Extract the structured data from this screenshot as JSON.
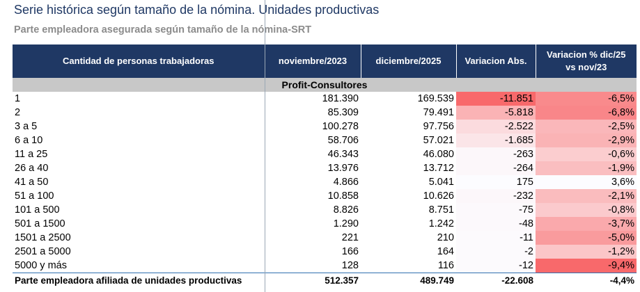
{
  "title": "Serie histórica según tamaño de la nómina. Unidades productivas",
  "subtitle": "Parte empleadora asegurada según tamaño de la nómina-SRT",
  "headers": {
    "category": "Cantidad de personas trabajadoras",
    "nov2023": "noviembre/2023",
    "dic2025": "diciembre/2025",
    "var_abs": "Variacion Abs.",
    "var_pct_line1": "Variacion % dic/25",
    "var_pct_line2": "vs nov/23"
  },
  "group_label": "Profit-Consultores",
  "rows": [
    {
      "label": "1",
      "nov2023": "181.390",
      "dic2025": "169.539",
      "var_abs": "-11.851",
      "var_pct": "-6,5%"
    },
    {
      "label": "2",
      "nov2023": "85.309",
      "dic2025": "79.491",
      "var_abs": "-5.818",
      "var_pct": "-6,8%"
    },
    {
      "label": "3 a 5",
      "nov2023": "100.278",
      "dic2025": "97.756",
      "var_abs": "-2.522",
      "var_pct": "-2,5%"
    },
    {
      "label": " 6 a 10",
      "nov2023": "58.706",
      "dic2025": "57.021",
      "var_abs": "-1.685",
      "var_pct": "-2,9%"
    },
    {
      "label": "11 a 25",
      "nov2023": "46.343",
      "dic2025": "46.080",
      "var_abs": "-263",
      "var_pct": "-0,6%"
    },
    {
      "label": "26 a 40",
      "nov2023": "13.976",
      "dic2025": "13.712",
      "var_abs": "-264",
      "var_pct": "-1,9%"
    },
    {
      "label": "41 a 50",
      "nov2023": "4.866",
      "dic2025": "5.041",
      "var_abs": "175",
      "var_pct": "3,6%"
    },
    {
      "label": "51 a 100",
      "nov2023": "10.858",
      "dic2025": "10.626",
      "var_abs": "-232",
      "var_pct": "-2,1%"
    },
    {
      "label": "101 a 500",
      "nov2023": "8.826",
      "dic2025": "8.751",
      "var_abs": "-75",
      "var_pct": "-0,8%"
    },
    {
      "label": "501 a 1500",
      "nov2023": "1.290",
      "dic2025": "1.242",
      "var_abs": "-48",
      "var_pct": "-3,7%"
    },
    {
      "label": "1501 a 2500",
      "nov2023": "221",
      "dic2025": "210",
      "var_abs": "-11",
      "var_pct": "-5,0%"
    },
    {
      "label": "2501 a 5000",
      "nov2023": "166",
      "dic2025": "164",
      "var_abs": "-2",
      "var_pct": "-1,2%"
    },
    {
      "label": "5000 y más",
      "nov2023": "128",
      "dic2025": "116",
      "var_abs": "-12",
      "var_pct": "-9,4%"
    }
  ],
  "total": {
    "label": "Parte empleadora afiliada de unidades productivas",
    "nov2023": "512.357",
    "dic2025": "489.749",
    "var_abs": "-22.608",
    "var_pct": "-4,4%"
  },
  "heat_colors": {
    "neg_max": "#f8696b",
    "neutral": "#fcfcff"
  }
}
